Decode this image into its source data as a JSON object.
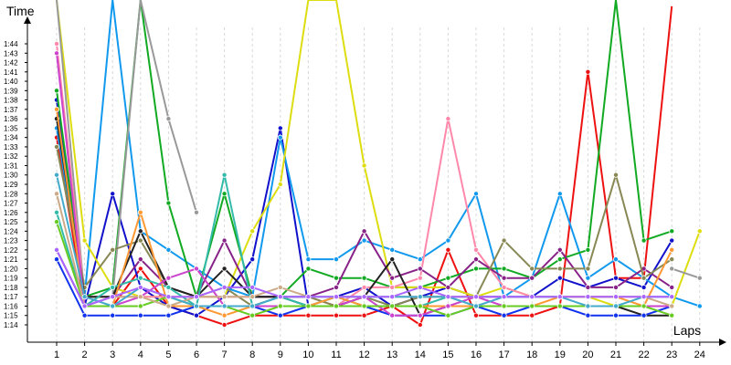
{
  "chart_data": {
    "type": "line",
    "title": "",
    "xlabel": "Laps",
    "ylabel": "Time",
    "xlim": [
      1,
      24
    ],
    "ylim": [
      "1:14",
      "1:44"
    ],
    "grid": "vertical dashed",
    "legend": "none",
    "x": [
      1,
      2,
      3,
      4,
      5,
      6,
      7,
      8,
      9,
      10,
      11,
      12,
      13,
      14,
      15,
      16,
      17,
      18,
      19,
      20,
      21,
      22,
      23,
      24
    ],
    "yticks": [
      "1:14",
      "1:15",
      "1:16",
      "1:17",
      "1:18",
      "1:19",
      "1:20",
      "1:21",
      "1:22",
      "1:23",
      "1:24",
      "1:25",
      "1:26",
      "1:27",
      "1:28",
      "1:29",
      "1:30",
      "1:31",
      "1:32",
      "1:33",
      "1:34",
      "1:35",
      "1:36",
      "1:37",
      "1:38",
      "1:39",
      "1:40",
      "1:41",
      "1:42",
      "1:43",
      "1:44"
    ],
    "series": [
      {
        "color": "#ee1111",
        "values": [
          "1:34",
          "1:16",
          "1:16",
          "1:20",
          "1:16",
          "1:15",
          "1:14",
          "1:15",
          "1:15",
          "1:15",
          "1:15",
          "1:15",
          "1:16",
          "1:14",
          "1:22",
          "1:15",
          "1:15",
          "1:15",
          "1:16",
          "1:41",
          "1:19",
          "1:19",
          "1:48",
          null
        ]
      },
      {
        "color": "#1111cc",
        "values": [
          "1:38",
          "1:16",
          "1:28",
          "1:18",
          "1:16",
          "1:15",
          "1:17",
          "1:21",
          "1:35",
          "1:16",
          "1:17",
          "1:18",
          "1:16",
          "1:17",
          "1:18",
          "1:17",
          "1:17",
          "1:17",
          "1:19",
          "1:18",
          "1:19",
          "1:18",
          "1:23",
          null
        ]
      },
      {
        "color": "#1199ee",
        "values": [
          "1:35",
          "1:17",
          "1:50",
          "1:24",
          "1:22",
          "1:20",
          "1:18",
          "1:17",
          "1:34",
          "1:21",
          "1:21",
          "1:23",
          "1:22",
          "1:21",
          "1:23",
          "1:28",
          "1:17",
          "1:19",
          "1:28",
          "1:19",
          "1:21",
          "1:19",
          "1:17",
          "1:16"
        ]
      },
      {
        "color": "#11aa22",
        "values": [
          "1:39",
          "1:17",
          "1:18",
          "1:50",
          "1:27",
          "1:17",
          "1:28",
          "1:17",
          "1:17",
          "1:20",
          "1:19",
          "1:19",
          "1:18",
          "1:18",
          "1:19",
          "1:20",
          "1:20",
          "1:19",
          "1:21",
          "1:22",
          "1:50",
          "1:23",
          "1:24",
          null
        ]
      },
      {
        "color": "#dddd11",
        "values": [
          "1:50",
          "1:23",
          "1:18",
          "1:17",
          "1:17",
          "1:17",
          "1:17",
          "1:24",
          "1:29",
          "1:50",
          "1:50",
          "1:31",
          "1:18",
          "1:18",
          "1:18",
          "1:17",
          "1:18",
          "1:17",
          "1:17",
          "1:17",
          "1:16",
          "1:16",
          "1:16",
          "1:24"
        ]
      },
      {
        "color": "#999999",
        "values": [
          "1:50",
          "1:17",
          "1:17",
          "1:50",
          "1:36",
          "1:26",
          null,
          null,
          null,
          null,
          null,
          null,
          null,
          null,
          null,
          null,
          null,
          null,
          null,
          null,
          null,
          null,
          null,
          null
        ]
      },
      {
        "color": "#ff88aa",
        "values": [
          "1:44",
          "1:17",
          "1:17",
          "1:17",
          "1:17",
          "1:17",
          "1:17",
          "1:17",
          "1:17",
          "1:17",
          "1:16",
          "1:18",
          "1:18",
          "1:19",
          "1:36",
          "1:22",
          "1:18",
          "1:17",
          "1:17",
          "1:17",
          "1:17",
          "1:17",
          "1:17",
          null
        ]
      },
      {
        "color": "#882288",
        "values": [
          "1:22",
          "1:16",
          "1:17",
          "1:21",
          "1:18",
          "1:17",
          "1:23",
          "1:17",
          "1:17",
          "1:17",
          "1:18",
          "1:24",
          "1:19",
          "1:20",
          "1:18",
          "1:21",
          "1:19",
          "1:19",
          "1:22",
          "1:18",
          "1:18",
          "1:20",
          "1:18",
          null
        ]
      },
      {
        "color": "#888855",
        "values": [
          "1:33",
          "1:18",
          "1:22",
          "1:23",
          "1:18",
          "1:17",
          "1:18",
          "1:16",
          "1:17",
          "1:17",
          "1:16",
          "1:17",
          "1:16",
          "1:17",
          "1:17",
          "1:17",
          "1:23",
          "1:20",
          "1:20",
          "1:20",
          "1:30",
          "1:19",
          "1:21",
          null
        ]
      },
      {
        "color": "#999999",
        "values": [
          null,
          null,
          null,
          null,
          null,
          null,
          null,
          null,
          null,
          null,
          null,
          null,
          null,
          null,
          null,
          null,
          null,
          null,
          null,
          null,
          null,
          null,
          "1:20",
          "1:19"
        ]
      },
      {
        "color": "#222222",
        "values": [
          "1:36",
          "1:17",
          "1:17",
          "1:24",
          "1:18",
          "1:17",
          "1:20",
          "1:17",
          "1:17",
          "1:16",
          "1:16",
          "1:17",
          "1:21",
          "1:15",
          "1:16",
          "1:16",
          "1:16",
          "1:16",
          "1:16",
          "1:16",
          "1:16",
          "1:15",
          "1:15",
          null
        ]
      },
      {
        "color": "#33bbaa",
        "values": [
          "1:26",
          "1:16",
          "1:18",
          "1:19",
          "1:18",
          "1:16",
          "1:30",
          "1:16",
          "1:17",
          "1:16",
          "1:17",
          "1:16",
          "1:16",
          "1:16",
          "1:17",
          "1:16",
          "1:16",
          "1:16",
          "1:16",
          "1:16",
          "1:16",
          "1:16",
          "1:16",
          null
        ]
      },
      {
        "color": "#ff9933",
        "values": [
          "1:37",
          "1:16",
          "1:16",
          "1:26",
          "1:16",
          "1:16",
          "1:15",
          "1:16",
          "1:16",
          "1:16",
          "1:17",
          "1:16",
          "1:16",
          "1:16",
          "1:16",
          "1:16",
          "1:16",
          "1:16",
          "1:17",
          "1:17",
          "1:17",
          "1:16",
          "1:22",
          null
        ]
      },
      {
        "color": "#1133ee",
        "values": [
          "1:21",
          "1:15",
          "1:15",
          "1:15",
          "1:15",
          "1:16",
          "1:16",
          "1:16",
          "1:15",
          "1:16",
          "1:16",
          "1:16",
          "1:15",
          "1:15",
          "1:15",
          "1:16",
          "1:15",
          "1:16",
          "1:16",
          "1:15",
          "1:15",
          "1:15",
          "1:16",
          null
        ]
      },
      {
        "color": "#cc44cc",
        "values": [
          "1:43",
          "1:16",
          "1:16",
          "1:17",
          "1:19",
          "1:20",
          "1:16",
          "1:16",
          "1:16",
          "1:16",
          "1:16",
          "1:17",
          "1:15",
          "1:15",
          "1:16",
          "1:17",
          "1:16",
          "1:16",
          "1:16",
          "1:16",
          "1:16",
          "1:16",
          "1:16",
          null
        ]
      },
      {
        "color": "#66cc22",
        "values": [
          "1:25",
          "1:16",
          "1:16",
          "1:16",
          "1:17",
          "1:16",
          "1:16",
          "1:15",
          "1:16",
          "1:16",
          "1:16",
          "1:16",
          "1:16",
          "1:16",
          "1:15",
          "1:16",
          "1:16",
          "1:16",
          "1:16",
          "1:16",
          "1:16",
          "1:16",
          "1:15",
          null
        ]
      },
      {
        "color": "#ccaa88",
        "values": [
          "1:28",
          "1:16",
          "1:17",
          "1:17",
          "1:16",
          "1:17",
          "1:17",
          "1:17",
          "1:18",
          "1:17",
          "1:17",
          "1:17",
          "1:17",
          "1:17",
          "1:17",
          "1:17",
          "1:17",
          "1:17",
          "1:17",
          "1:17",
          "1:17",
          "1:17",
          "1:16",
          null
        ]
      },
      {
        "color": "#44aacc",
        "values": [
          "1:30",
          "1:17",
          "1:16",
          "1:18",
          "1:17",
          "1:16",
          "1:16",
          "1:16",
          "1:17",
          "1:17",
          "1:17",
          "1:17",
          "1:17",
          "1:17",
          "1:17",
          "1:16",
          "1:17",
          "1:17",
          "1:17",
          "1:16",
          "1:16",
          "1:17",
          "1:17",
          null
        ]
      },
      {
        "color": "#aa66ff",
        "values": [
          "1:22",
          "1:16",
          "1:17",
          "1:18",
          "1:17",
          "1:17",
          "1:18",
          "1:18",
          "1:17",
          "1:17",
          "1:17",
          "1:17",
          "1:17",
          "1:18",
          "1:17",
          "1:17",
          "1:17",
          "1:17",
          "1:17",
          "1:17",
          "1:17",
          "1:17",
          "1:17",
          null
        ]
      }
    ]
  }
}
